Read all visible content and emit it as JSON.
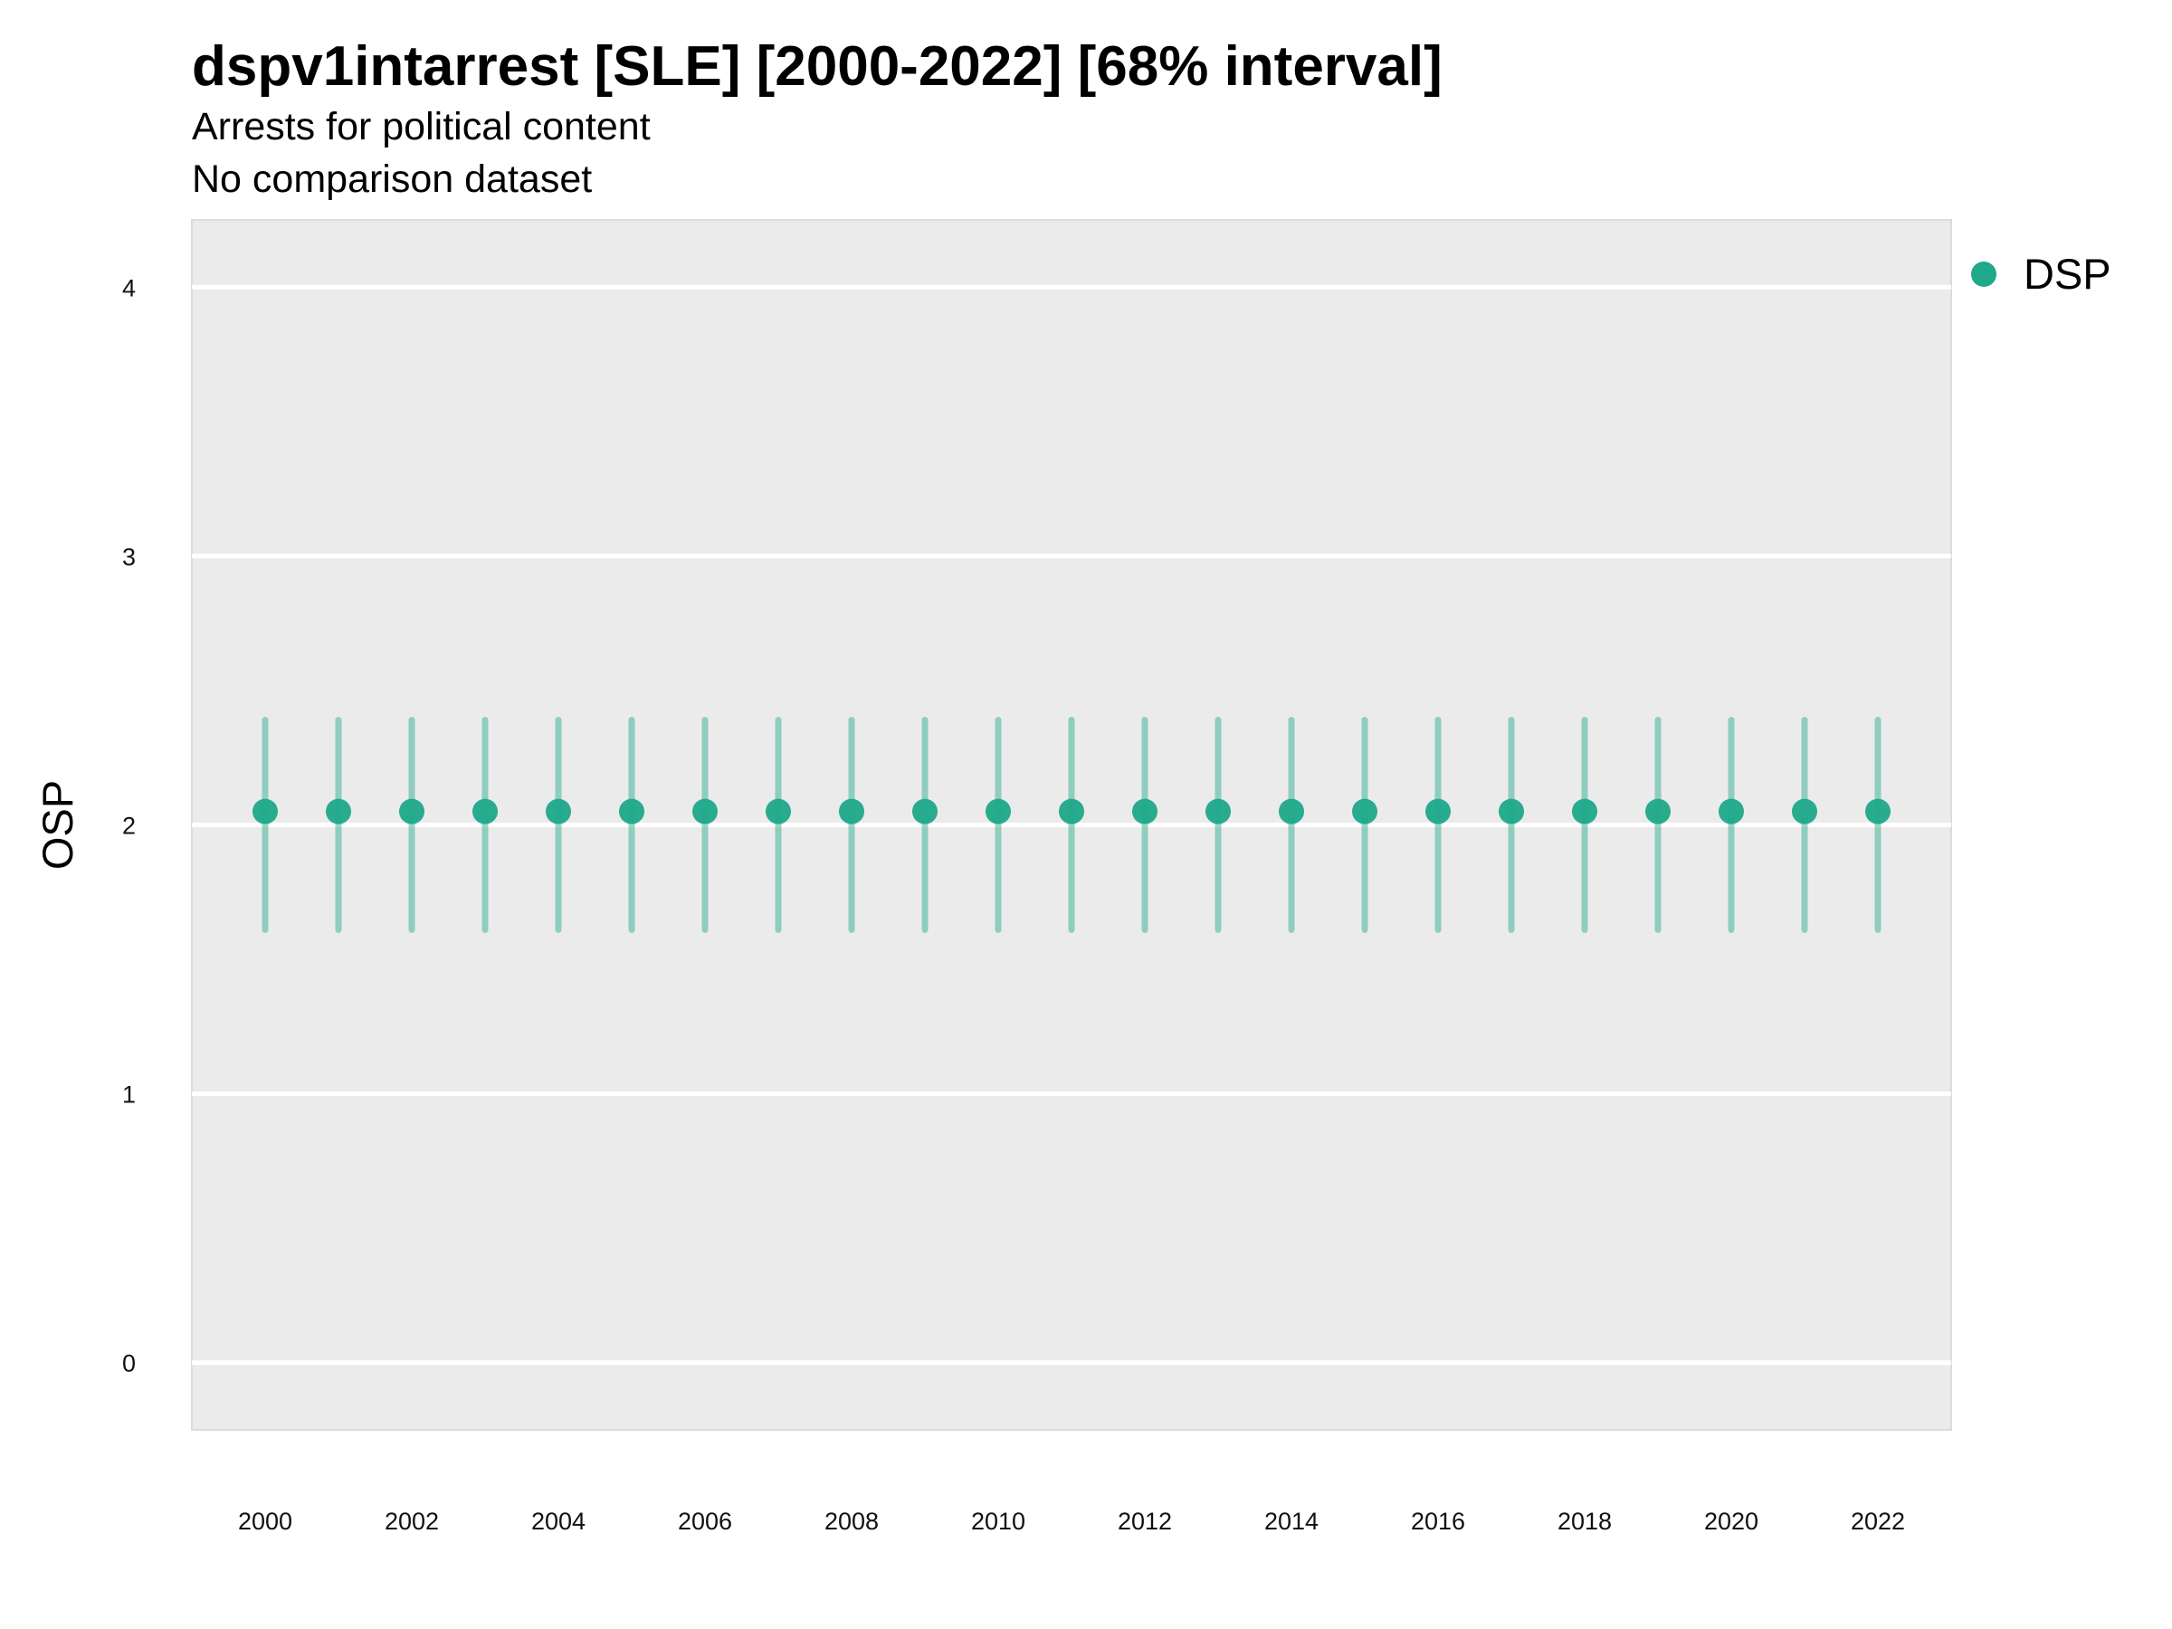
{
  "chart_data": {
    "type": "scatter",
    "title": "dspv1intarrest [SLE] [2000-2022] [68% interval]",
    "subtitle_lines": [
      "Arrests for political content",
      "No comparison dataset"
    ],
    "xlabel": "",
    "ylabel": "OSP",
    "x_ticks": [
      2000,
      2002,
      2004,
      2006,
      2008,
      2010,
      2012,
      2014,
      2016,
      2018,
      2020,
      2022
    ],
    "y_ticks": [
      0,
      1,
      2,
      3,
      4
    ],
    "xlim": [
      1999.0,
      2023.0
    ],
    "ylim": [
      -0.25,
      4.25
    ],
    "grid": true,
    "legend_position": "right",
    "series": [
      {
        "name": "DSP",
        "color": "#1fa88a",
        "x": [
          2000,
          2001,
          2002,
          2003,
          2004,
          2005,
          2006,
          2007,
          2008,
          2009,
          2010,
          2011,
          2012,
          2013,
          2014,
          2015,
          2016,
          2017,
          2018,
          2019,
          2020,
          2021,
          2022
        ],
        "y": [
          2.05,
          2.05,
          2.05,
          2.05,
          2.05,
          2.05,
          2.05,
          2.05,
          2.05,
          2.05,
          2.05,
          2.05,
          2.05,
          2.05,
          2.05,
          2.05,
          2.05,
          2.05,
          2.05,
          2.05,
          2.05,
          2.05,
          2.05
        ],
        "lower": [
          1.61,
          1.61,
          1.61,
          1.61,
          1.61,
          1.61,
          1.61,
          1.61,
          1.61,
          1.61,
          1.61,
          1.61,
          1.61,
          1.61,
          1.61,
          1.61,
          1.61,
          1.61,
          1.61,
          1.61,
          1.61,
          1.61,
          1.61
        ],
        "upper": [
          2.39,
          2.39,
          2.39,
          2.39,
          2.39,
          2.39,
          2.39,
          2.39,
          2.39,
          2.39,
          2.39,
          2.39,
          2.39,
          2.39,
          2.39,
          2.39,
          2.39,
          2.39,
          2.39,
          2.39,
          2.39,
          2.39,
          2.39
        ]
      }
    ]
  }
}
